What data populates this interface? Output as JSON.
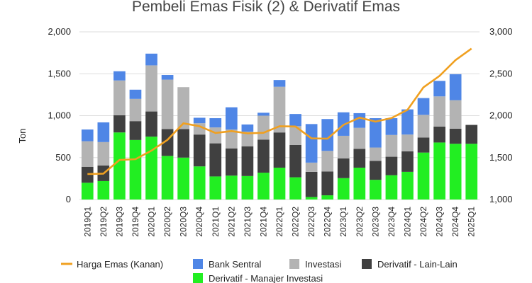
{
  "chart_data": {
    "type": "bar",
    "stacked": true,
    "title": "Pembeli Emas Fisik (2) & Derivatif Emas",
    "ylabel": "Ton",
    "y2label": "",
    "ylim": [
      0,
      2000
    ],
    "y2lim": [
      1000,
      3000
    ],
    "yticks": [
      "0",
      "500",
      "1,000",
      "1,500",
      "2,000"
    ],
    "y2ticks": [
      "1,000",
      "1,500",
      "2,000",
      "2,500",
      "3,000"
    ],
    "grid": true,
    "legend_position": "bottom",
    "categories": [
      "2019Q1",
      "2019Q2",
      "2019Q3",
      "2019Q4",
      "2020Q1",
      "2020Q2",
      "2020Q3",
      "2020Q4",
      "2021Q1",
      "2021Q2",
      "2021Q3",
      "2021Q4",
      "2022Q1",
      "2022Q2",
      "2022Q3",
      "2022Q4",
      "2023Q1",
      "2023Q2",
      "2023Q3",
      "2023Q4",
      "2024Q1",
      "2024Q2",
      "2024Q3",
      "2024Q4",
      "2025Q1"
    ],
    "series": [
      {
        "name": "Derivatif - Manajer Investasi",
        "kind": "bar",
        "color": "#22ee22",
        "values": [
          200,
          220,
          800,
          710,
          750,
          520,
          500,
          395,
          275,
          285,
          280,
          320,
          380,
          265,
          30,
          50,
          255,
          380,
          235,
          290,
          330,
          560,
          680,
          665,
          665
        ]
      },
      {
        "name": "Derivatif - Lain-Lain",
        "kind": "bar",
        "color": "#404040",
        "values": [
          190,
          185,
          205,
          225,
          300,
          320,
          340,
          380,
          395,
          325,
          355,
          395,
          420,
          385,
          300,
          285,
          235,
          225,
          225,
          220,
          245,
          180,
          190,
          180,
          225
        ]
      },
      {
        "name": "Investasi",
        "kind": "bar",
        "color": "#b3b3b3",
        "values": [
          305,
          280,
          415,
          265,
          550,
          590,
          500,
          135,
          190,
          225,
          175,
          285,
          545,
          225,
          110,
          245,
          270,
          250,
          160,
          260,
          200,
          270,
          360,
          340,
          0
        ]
      },
      {
        "name": "Bank Sentral",
        "kind": "bar",
        "color": "#4f86e6",
        "values": [
          140,
          235,
          110,
          110,
          140,
          55,
          0,
          65,
          110,
          265,
          85,
          35,
          80,
          145,
          460,
          380,
          280,
          175,
          350,
          200,
          300,
          200,
          185,
          310,
          0
        ]
      },
      {
        "name": "Harga Emas (Kanan)",
        "kind": "line",
        "axis": "right",
        "color": "#f0a020",
        "values": [
          1304,
          1309,
          1472,
          1481,
          1583,
          1711,
          1909,
          1874,
          1794,
          1816,
          1789,
          1796,
          1874,
          1871,
          1729,
          1726,
          1890,
          1976,
          1929,
          1971,
          2070,
          2338,
          2474,
          2663,
          2800
        ]
      }
    ],
    "legend": [
      "Harga Emas (Kanan)",
      "Bank Sentral",
      "Investasi",
      "Derivatif - Lain-Lain",
      "Derivatif - Manajer Investasi"
    ]
  }
}
